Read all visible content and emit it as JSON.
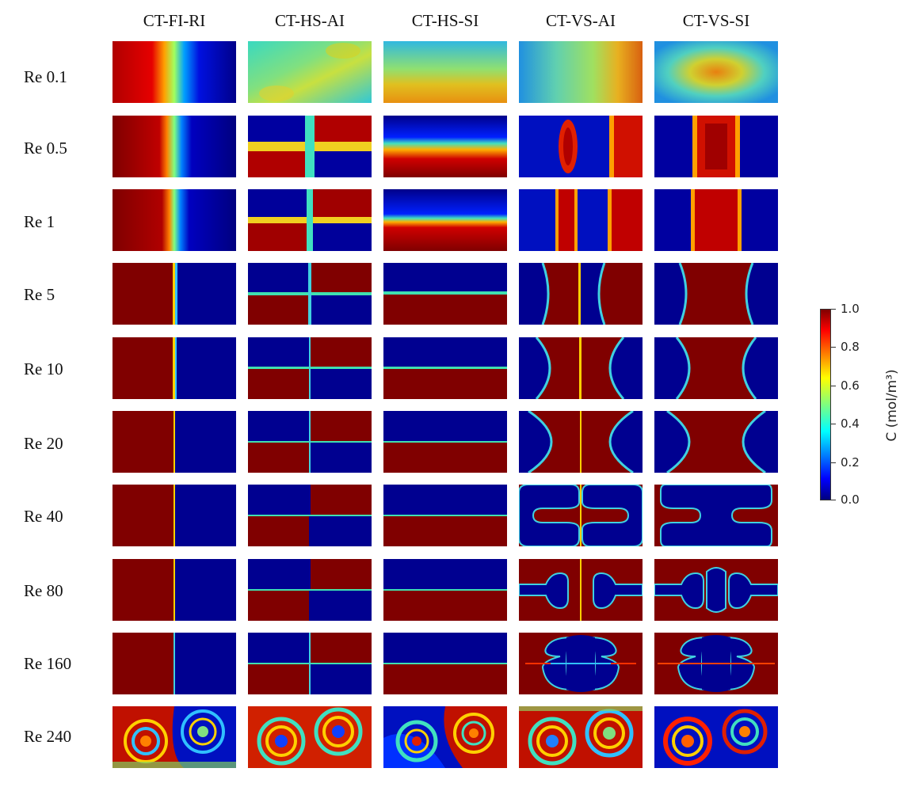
{
  "columns": [
    "CT-FI-RI",
    "CT-HS-AI",
    "CT-HS-SI",
    "CT-VS-AI",
    "CT-VS-SI"
  ],
  "rows": [
    "Re 0.1",
    "Re 0.5",
    "Re 1",
    "Re 5",
    "Re 10",
    "Re 20",
    "Re 40",
    "Re 80",
    "Re 160",
    "Re 240"
  ],
  "colorbar": {
    "title": "C (mol/m³)",
    "ticks": [
      "1.0",
      "0.8",
      "0.6",
      "0.4",
      "0.2",
      "0.0"
    ],
    "min": 0.0,
    "max": 1.0,
    "colormap": "jet"
  },
  "colors": {
    "dark_red": "#800000",
    "red": "#ff0000",
    "yellow": "#ffff00",
    "cyan": "#00ffff",
    "blue": "#0000ff",
    "dark_blue": "#000080"
  }
}
